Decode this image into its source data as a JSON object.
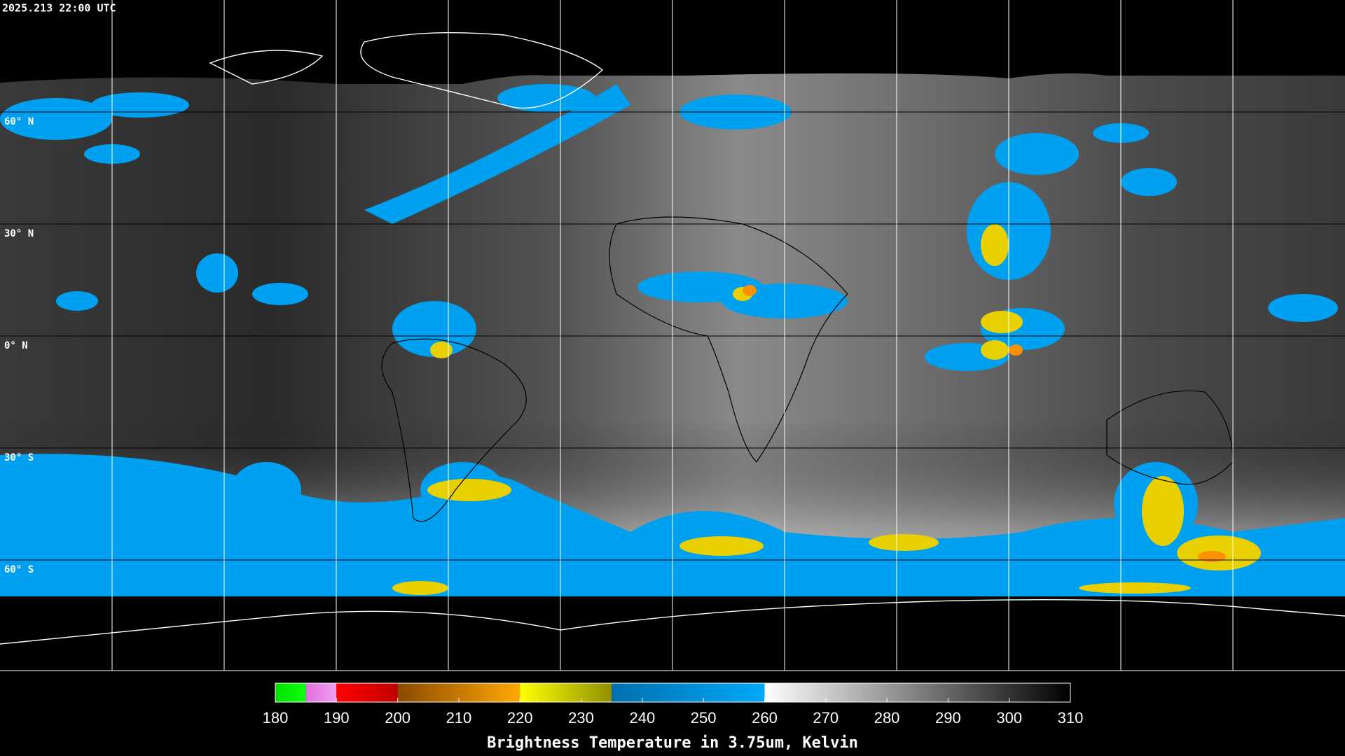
{
  "header": {
    "timestamp": "2025.213 22:00 UTC"
  },
  "map": {
    "latitude_labels": [
      "60° N",
      "30° N",
      "0° N",
      "30° S",
      "60° S"
    ]
  },
  "colorbar": {
    "title": "Brightness Temperature in 3.75um, Kelvin",
    "range": [
      180,
      310
    ],
    "ticks": [
      180,
      190,
      200,
      210,
      220,
      230,
      240,
      250,
      260,
      270,
      280,
      290,
      300,
      310
    ],
    "segments": [
      {
        "from": 180,
        "to": 185,
        "colors": [
          "#00e000",
          "#10ff10"
        ]
      },
      {
        "from": 185,
        "to": 190,
        "colors": [
          "#e070e0",
          "#f0a0f0"
        ]
      },
      {
        "from": 190,
        "to": 200,
        "colors": [
          "#ff0000",
          "#c00000"
        ]
      },
      {
        "from": 200,
        "to": 220,
        "colors": [
          "#8a4a00",
          "#ffa800"
        ]
      },
      {
        "from": 220,
        "to": 235,
        "colors": [
          "#ffff00",
          "#909000"
        ]
      },
      {
        "from": 235,
        "to": 260,
        "colors": [
          "#0070b0",
          "#00a8f8"
        ]
      },
      {
        "from": 260,
        "to": 310,
        "colors": [
          "#ffffff",
          "#000000"
        ]
      }
    ]
  }
}
